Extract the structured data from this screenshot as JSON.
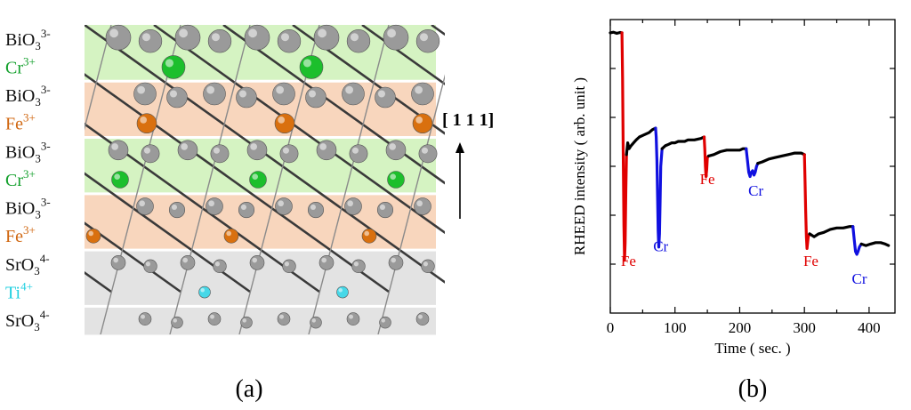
{
  "panel_a": {
    "caption": "(a)",
    "direction_label": "[ 1 1 1]",
    "layers": [
      {
        "base": "BiO",
        "sub": "3",
        "sup": "3-",
        "color": "#111111",
        "band": "#d5f3c2"
      },
      {
        "base": "Cr",
        "sub": "",
        "sup": "3+",
        "color": "#13a02c",
        "band": "#d5f3c2"
      },
      {
        "base": "BiO",
        "sub": "3",
        "sup": "3-",
        "color": "#111111",
        "band": "#f8d6bd"
      },
      {
        "base": "Fe",
        "sub": "",
        "sup": "3+",
        "color": "#d0660f",
        "band": "#f8d6bd"
      },
      {
        "base": "BiO",
        "sub": "3",
        "sup": "3-",
        "color": "#111111",
        "band": "#d5f3c2"
      },
      {
        "base": "Cr",
        "sub": "",
        "sup": "3+",
        "color": "#13a02c",
        "band": "#d5f3c2"
      },
      {
        "base": "BiO",
        "sub": "3",
        "sup": "3-",
        "color": "#111111",
        "band": "#f8d6bd"
      },
      {
        "base": "Fe",
        "sub": "",
        "sup": "3+",
        "color": "#d0660f",
        "band": "#f8d6bd"
      },
      {
        "base": "SrO",
        "sub": "3",
        "sup": "4-",
        "color": "#111111",
        "band": "#e3e3e3"
      },
      {
        "base": "Ti",
        "sub": "",
        "sup": "4+",
        "color": "#1fcfe0",
        "band": "#e3e3e3"
      },
      {
        "base": "SrO",
        "sub": "3",
        "sup": "4-",
        "color": "#111111",
        "band": "#e3e3e3"
      }
    ],
    "atom_colors": {
      "oxygen": "#9a9a9a",
      "cr": "#1cbf2c",
      "fe": "#d9700f",
      "ti": "#46d8e8"
    }
  },
  "chart_data": {
    "type": "line",
    "caption": "(b)",
    "xlabel": "Time ( sec. )",
    "ylabel": "RHEED intensity ( arb. unit )",
    "xlim": [
      0,
      440
    ],
    "ylim": [
      0,
      1.0
    ],
    "xticks": [
      0,
      100,
      200,
      300,
      400
    ],
    "yticks_labeled": false,
    "grid": false,
    "segments": [
      {
        "label": "",
        "color": "#000000",
        "points": [
          [
            0,
            0.955
          ],
          [
            5,
            0.957
          ],
          [
            10,
            0.953
          ],
          [
            15,
            0.956
          ],
          [
            18,
            0.955
          ]
        ]
      },
      {
        "label": "Fe",
        "color": "#e00000",
        "label_pos": [
          28,
          0.16
        ],
        "points": [
          [
            18,
            0.955
          ],
          [
            19,
            0.8
          ],
          [
            20,
            0.55
          ],
          [
            21,
            0.3
          ],
          [
            22,
            0.18
          ],
          [
            23,
            0.24
          ],
          [
            24,
            0.42
          ],
          [
            25,
            0.54
          ]
        ]
      },
      {
        "label": "",
        "color": "#000000",
        "points": [
          [
            25,
            0.54
          ],
          [
            27,
            0.58
          ],
          [
            29,
            0.56
          ],
          [
            32,
            0.57
          ],
          [
            36,
            0.58
          ],
          [
            40,
            0.59
          ],
          [
            45,
            0.6
          ],
          [
            50,
            0.605
          ],
          [
            55,
            0.61
          ],
          [
            60,
            0.615
          ],
          [
            65,
            0.625
          ],
          [
            70,
            0.63
          ]
        ]
      },
      {
        "label": "Cr",
        "color": "#1010e0",
        "label_pos": [
          78,
          0.21
        ],
        "points": [
          [
            70,
            0.63
          ],
          [
            71,
            0.6
          ],
          [
            72,
            0.52
          ],
          [
            73,
            0.4
          ],
          [
            74,
            0.28
          ],
          [
            75,
            0.225
          ],
          [
            76,
            0.27
          ],
          [
            77,
            0.38
          ],
          [
            78,
            0.5
          ],
          [
            80,
            0.56
          ]
        ]
      },
      {
        "label": "",
        "color": "#000000",
        "points": [
          [
            80,
            0.56
          ],
          [
            85,
            0.57
          ],
          [
            90,
            0.575
          ],
          [
            95,
            0.58
          ],
          [
            100,
            0.58
          ],
          [
            105,
            0.585
          ],
          [
            110,
            0.585
          ],
          [
            115,
            0.585
          ],
          [
            120,
            0.59
          ],
          [
            130,
            0.59
          ],
          [
            140,
            0.595
          ],
          [
            145,
            0.6
          ]
        ]
      },
      {
        "label": "Fe",
        "color": "#e00000",
        "label_pos": [
          150,
          0.44
        ],
        "points": [
          [
            145,
            0.6
          ],
          [
            146,
            0.56
          ],
          [
            147,
            0.5
          ],
          [
            148,
            0.465
          ],
          [
            149,
            0.49
          ],
          [
            150,
            0.53
          ],
          [
            152,
            0.535
          ]
        ]
      },
      {
        "label": "",
        "color": "#000000",
        "points": [
          [
            152,
            0.535
          ],
          [
            160,
            0.54
          ],
          [
            170,
            0.55
          ],
          [
            180,
            0.555
          ],
          [
            190,
            0.555
          ],
          [
            200,
            0.555
          ],
          [
            205,
            0.56
          ],
          [
            210,
            0.56
          ]
        ]
      },
      {
        "label": "Cr",
        "color": "#1010e0",
        "label_pos": [
          225,
          0.4
        ],
        "points": [
          [
            210,
            0.56
          ],
          [
            212,
            0.52
          ],
          [
            214,
            0.48
          ],
          [
            216,
            0.465
          ],
          [
            218,
            0.48
          ],
          [
            220,
            0.485
          ],
          [
            222,
            0.47
          ],
          [
            224,
            0.48
          ],
          [
            226,
            0.5
          ],
          [
            228,
            0.51
          ]
        ]
      },
      {
        "label": "",
        "color": "#000000",
        "points": [
          [
            228,
            0.51
          ],
          [
            235,
            0.515
          ],
          [
            245,
            0.525
          ],
          [
            255,
            0.53
          ],
          [
            265,
            0.535
          ],
          [
            275,
            0.54
          ],
          [
            285,
            0.545
          ],
          [
            295,
            0.545
          ],
          [
            300,
            0.54
          ]
        ]
      },
      {
        "label": "Fe",
        "color": "#e00000",
        "label_pos": [
          310,
          0.16
        ],
        "points": [
          [
            300,
            0.54
          ],
          [
            301,
            0.45
          ],
          [
            302,
            0.35
          ],
          [
            303,
            0.26
          ],
          [
            304,
            0.22
          ],
          [
            305,
            0.24
          ],
          [
            306,
            0.26
          ],
          [
            308,
            0.27
          ]
        ]
      },
      {
        "label": "",
        "color": "#000000",
        "points": [
          [
            308,
            0.27
          ],
          [
            315,
            0.26
          ],
          [
            322,
            0.27
          ],
          [
            330,
            0.275
          ],
          [
            340,
            0.285
          ],
          [
            350,
            0.29
          ],
          [
            360,
            0.29
          ],
          [
            370,
            0.295
          ],
          [
            375,
            0.295
          ]
        ]
      },
      {
        "label": "Cr",
        "color": "#1010e0",
        "label_pos": [
          385,
          0.1
        ],
        "points": [
          [
            375,
            0.295
          ],
          [
            377,
            0.25
          ],
          [
            379,
            0.21
          ],
          [
            381,
            0.2
          ],
          [
            383,
            0.21
          ],
          [
            385,
            0.225
          ],
          [
            388,
            0.235
          ]
        ]
      },
      {
        "label": "",
        "color": "#000000",
        "points": [
          [
            388,
            0.235
          ],
          [
            395,
            0.23
          ],
          [
            402,
            0.235
          ],
          [
            410,
            0.24
          ],
          [
            418,
            0.24
          ],
          [
            425,
            0.235
          ],
          [
            430,
            0.23
          ]
        ]
      }
    ]
  }
}
